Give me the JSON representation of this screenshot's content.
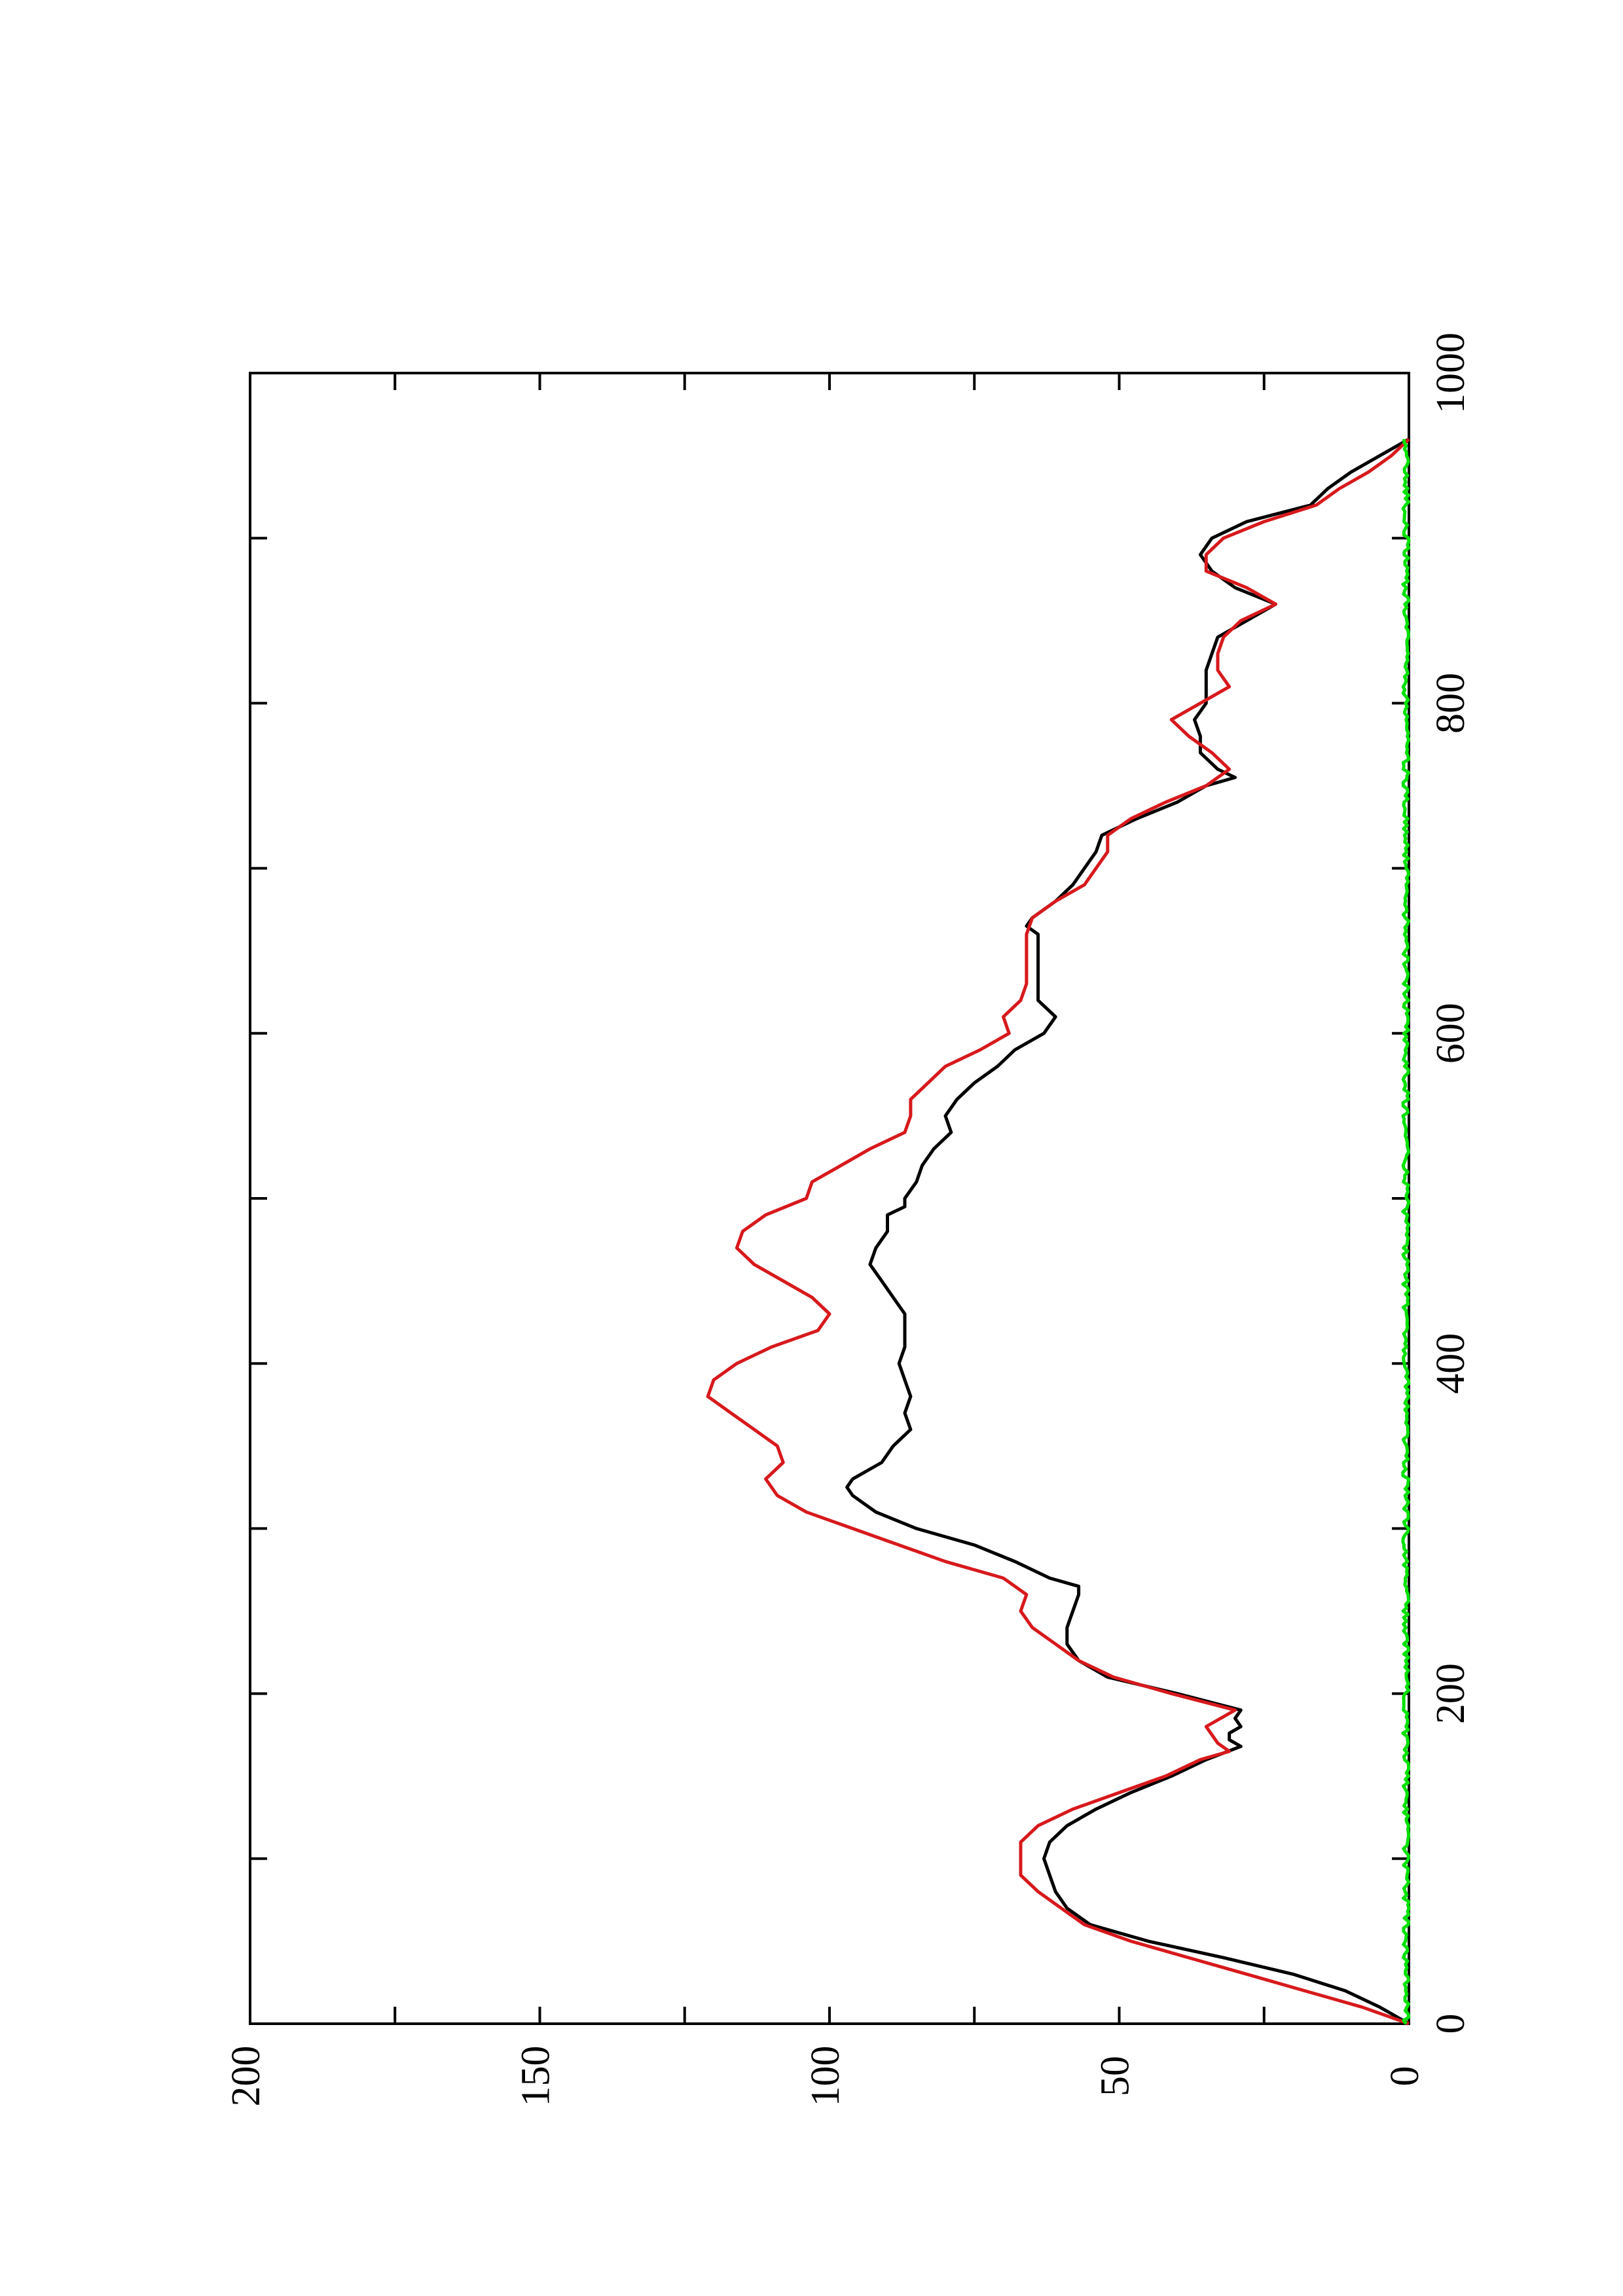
{
  "chart_data": {
    "type": "line",
    "orientation": "rotated-90-ccw",
    "title": "",
    "xlabel": "",
    "ylabel": "",
    "xlim": [
      0,
      1000
    ],
    "ylim": [
      0,
      200
    ],
    "grid": false,
    "legend": "none",
    "x_ticks": [
      0,
      200,
      400,
      600,
      800,
      1000
    ],
    "x_tick_labels": [
      "0",
      "200",
      "400",
      "600",
      "800",
      "1000"
    ],
    "x_minor_ticks": [
      100,
      300,
      500,
      700,
      900
    ],
    "y_ticks": [
      0,
      50,
      100,
      150,
      200
    ],
    "y_tick_labels": [
      "0",
      "50",
      "100",
      "150",
      "200"
    ],
    "y_minor_ticks": [
      25,
      75,
      125,
      175
    ],
    "series": [
      {
        "color": "#000000",
        "x": [
          0,
          10,
          20,
          30,
          40,
          50,
          60,
          70,
          80,
          90,
          100,
          110,
          120,
          130,
          140,
          150,
          160,
          168,
          172,
          176,
          180,
          185,
          190,
          200,
          210,
          220,
          230,
          240,
          250,
          260,
          265,
          270,
          280,
          290,
          300,
          310,
          320,
          325,
          330,
          340,
          350,
          360,
          370,
          380,
          390,
          400,
          410,
          420,
          430,
          440,
          450,
          460,
          470,
          480,
          490,
          495,
          500,
          510,
          520,
          530,
          540,
          550,
          560,
          570,
          580,
          590,
          600,
          610,
          620,
          630,
          640,
          650,
          660,
          665,
          670,
          680,
          690,
          700,
          710,
          720,
          730,
          740,
          750,
          755,
          760,
          770,
          780,
          790,
          800,
          810,
          820,
          830,
          840,
          850,
          860,
          870,
          880,
          890,
          900,
          910,
          920,
          930,
          940,
          950,
          960
        ],
        "y": [
          0,
          5,
          11,
          20,
          32,
          45,
          55,
          59,
          61,
          62,
          63,
          62,
          59,
          54,
          48,
          41,
          35,
          29,
          31,
          31,
          29,
          30,
          29,
          40,
          52,
          57,
          59,
          59,
          58,
          57,
          57,
          62,
          68,
          75,
          85,
          92,
          96,
          97,
          96,
          91,
          89,
          86,
          87,
          86,
          87,
          88,
          87,
          87,
          87,
          89,
          91,
          93,
          92,
          90,
          90,
          87,
          87,
          85,
          84,
          82,
          79,
          80,
          78,
          75,
          71,
          68,
          63,
          61,
          64,
          64,
          64,
          64,
          64,
          66,
          65,
          61,
          58,
          56,
          54,
          53,
          47,
          40,
          35,
          30,
          33,
          36,
          36,
          37,
          35,
          35,
          35,
          34,
          33,
          28,
          23,
          30,
          34,
          36,
          34,
          28,
          17,
          14,
          10,
          5,
          0
        ]
      },
      {
        "color": "#d7191c",
        "x": [
          0,
          10,
          20,
          30,
          40,
          50,
          60,
          70,
          80,
          90,
          100,
          110,
          120,
          130,
          140,
          150,
          160,
          165,
          170,
          180,
          190,
          200,
          210,
          220,
          230,
          240,
          250,
          260,
          270,
          280,
          290,
          300,
          310,
          320,
          330,
          340,
          350,
          360,
          370,
          380,
          390,
          400,
          410,
          420,
          430,
          440,
          450,
          460,
          470,
          480,
          490,
          500,
          510,
          520,
          530,
          540,
          550,
          560,
          570,
          580,
          590,
          600,
          610,
          620,
          630,
          640,
          650,
          660,
          670,
          680,
          690,
          700,
          710,
          720,
          730,
          740,
          750,
          760,
          770,
          780,
          790,
          800,
          810,
          820,
          830,
          840,
          850,
          860,
          870,
          880,
          890,
          900,
          910,
          920,
          930,
          940,
          950,
          960
        ],
        "y": [
          0,
          8,
          18,
          28,
          38,
          48,
          56,
          60,
          64,
          67,
          67,
          67,
          64,
          58,
          50,
          42,
          36,
          31,
          33,
          35,
          30,
          41,
          51,
          57,
          61,
          65,
          67,
          66,
          70,
          80,
          88,
          96,
          104,
          109,
          111,
          108,
          109,
          113,
          117,
          121,
          120,
          116,
          110,
          102,
          100,
          103,
          108,
          113,
          116,
          115,
          111,
          104,
          103,
          98,
          93,
          87,
          86,
          86,
          83,
          80,
          74,
          69,
          70,
          67,
          66,
          66,
          66,
          66,
          65,
          61,
          56,
          54,
          52,
          52,
          48,
          42,
          35,
          31,
          34,
          38,
          41,
          36,
          31,
          33,
          33,
          32,
          29,
          23,
          28,
          35,
          35,
          32,
          25,
          16,
          12,
          7,
          3,
          0
        ]
      },
      {
        "color": "#00e000",
        "x": [
          0,
          960
        ],
        "y": [
          0,
          0
        ],
        "noise_amplitude": 1.5
      }
    ]
  }
}
